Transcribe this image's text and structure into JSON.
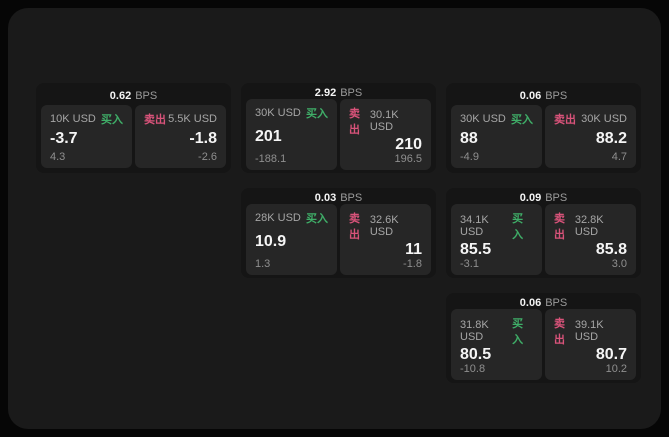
{
  "labels": {
    "bps_unit": "BPS",
    "buy_tag": "买入",
    "sell_tag": "卖出"
  },
  "colors": {
    "buy": "#3fae68",
    "sell": "#d9537a"
  },
  "cards": [
    {
      "bps": "0.62",
      "buy": {
        "amount": "10K USD",
        "value": "-3.7",
        "sub": "4.3"
      },
      "sell": {
        "amount": "5.5K USD",
        "value": "-1.8",
        "sub": "-2.6"
      }
    },
    {
      "bps": "2.92",
      "buy": {
        "amount": "30K USD",
        "value": "201",
        "sub": "-188.1"
      },
      "sell": {
        "amount": "30.1K USD",
        "value": "210",
        "sub": "196.5"
      }
    },
    {
      "bps": "0.06",
      "buy": {
        "amount": "30K USD",
        "value": "88",
        "sub": "-4.9"
      },
      "sell": {
        "amount": "30K USD",
        "value": "88.2",
        "sub": "4.7"
      }
    },
    {
      "bps": "0.03",
      "buy": {
        "amount": "28K USD",
        "value": "10.9",
        "sub": "1.3"
      },
      "sell": {
        "amount": "32.6K USD",
        "value": "11",
        "sub": "-1.8"
      }
    },
    {
      "bps": "0.09",
      "buy": {
        "amount": "34.1K USD",
        "value": "85.5",
        "sub": "-3.1"
      },
      "sell": {
        "amount": "32.8K USD",
        "value": "85.8",
        "sub": "3.0"
      }
    },
    {
      "bps": "0.06",
      "buy": {
        "amount": "31.8K USD",
        "value": "80.5",
        "sub": "-10.8"
      },
      "sell": {
        "amount": "39.1K USD",
        "value": "80.7",
        "sub": "10.2"
      }
    }
  ]
}
